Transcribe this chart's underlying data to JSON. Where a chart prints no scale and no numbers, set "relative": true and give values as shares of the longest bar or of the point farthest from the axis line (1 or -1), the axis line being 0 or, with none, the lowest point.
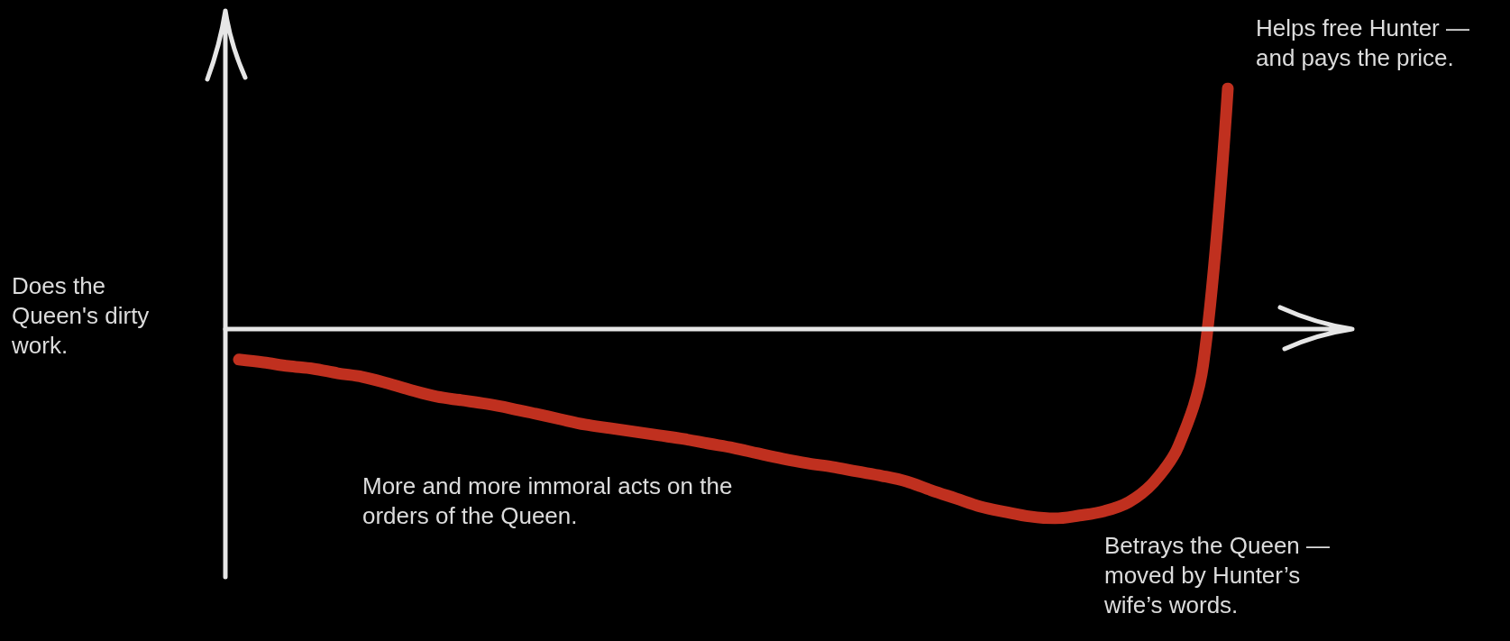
{
  "chart_data": {
    "type": "line",
    "relative": true,
    "line_style": "solid",
    "categories": [
      null,
      null,
      null,
      null,
      null,
      null,
      null,
      null,
      null,
      null,
      null,
      null,
      null,
      null,
      null,
      null,
      null,
      null,
      null,
      null,
      null,
      null,
      null,
      null,
      null,
      null,
      null,
      null,
      null,
      null,
      null,
      null,
      null,
      null,
      null,
      null,
      null,
      null,
      null,
      null,
      null
    ],
    "series": [
      {
        "color": "#c0301f",
        "values": [
          -0.127,
          -0.139,
          -0.154,
          -0.165,
          -0.184,
          -0.199,
          -0.225,
          -0.255,
          -0.281,
          -0.296,
          -0.311,
          -0.33,
          -0.352,
          -0.375,
          -0.397,
          -0.412,
          -0.427,
          -0.442,
          -0.457,
          -0.476,
          -0.494,
          -0.517,
          -0.539,
          -0.558,
          -0.573,
          -0.592,
          -0.61,
          -0.633,
          -0.67,
          -0.704,
          -0.738,
          -0.76,
          -0.779,
          -0.787,
          -0.775,
          -0.757,
          -0.719,
          -0.637,
          -0.487,
          -0.15,
          1
        ]
      }
    ],
    "annotations": [
      "Does the Queen's dirty work.",
      "More and more immoral acts on the orders of the Queen.",
      "Betrays the Queen — moved by Hunter’s wife’s words.",
      "Helps free Hunter — and pays the price."
    ]
  }
}
